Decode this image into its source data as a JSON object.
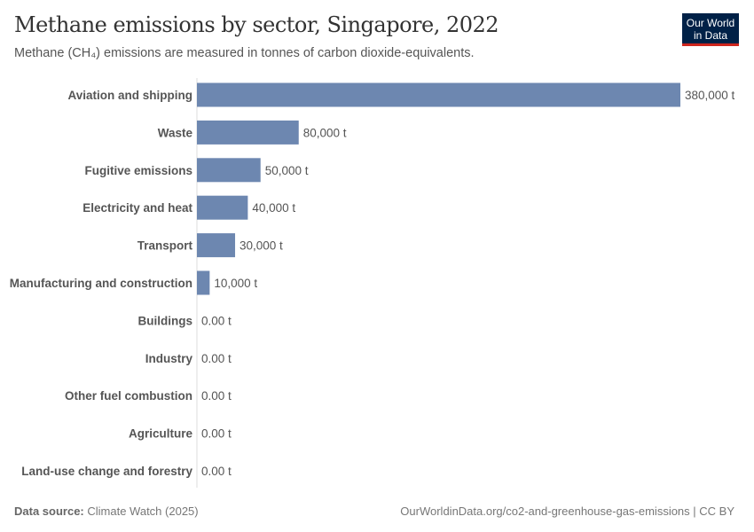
{
  "header": {
    "title": "Methane emissions by sector, Singapore, 2022",
    "subtitle": "Methane (CH₄) emissions are measured in tonnes of carbon dioxide-equivalents.",
    "logo": "Our World in Data"
  },
  "footer": {
    "source_label": "Data source:",
    "source": "Climate Watch (2025)",
    "url": "OurWorldinData.org/co2-and-greenhouse-gas-emissions | CC BY"
  },
  "chart_data": {
    "type": "bar",
    "orientation": "horizontal",
    "bar_color": "#6d87b0",
    "categories": [
      "Aviation and shipping",
      "Waste",
      "Fugitive emissions",
      "Electricity and heat",
      "Transport",
      "Manufacturing and construction",
      "Buildings",
      "Industry",
      "Other fuel combustion",
      "Agriculture",
      "Land-use change and forestry"
    ],
    "values": [
      380000,
      80000,
      50000,
      40000,
      30000,
      10000,
      0,
      0,
      0,
      0,
      0
    ],
    "data_labels": [
      "380,000 t",
      "80,000 t",
      "50,000 t",
      "40,000 t",
      "30,000 t",
      "10,000 t",
      "0.00 t",
      "0.00 t",
      "0.00 t",
      "0.00 t",
      "0.00 t"
    ],
    "xlim": [
      0,
      380000
    ],
    "grid": false
  }
}
